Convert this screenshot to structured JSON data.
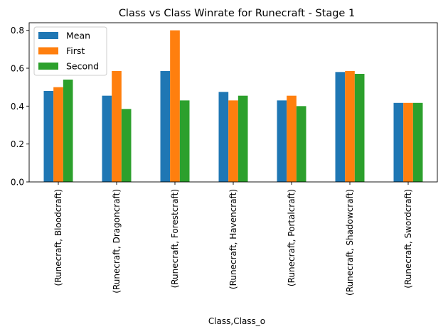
{
  "chart_data": {
    "type": "bar",
    "title": "Class vs Class Winrate for Runecraft - Stage 1",
    "xlabel": "Class,Class_o",
    "ylabel": "",
    "ylim": [
      0,
      0.84
    ],
    "yticks": [
      "0.0",
      "0.2",
      "0.4",
      "0.6",
      "0.8"
    ],
    "ytick_values": [
      0.0,
      0.2,
      0.4,
      0.6,
      0.8
    ],
    "grid": false,
    "legend_position": "top-left",
    "categories": [
      "(Runecraft, Bloodcraft)",
      "(Runecraft, Dragoncraft)",
      "(Runecraft, Forestcraft)",
      "(Runecraft, Havencraft)",
      "(Runecraft, Portalcraft)",
      "(Runecraft, Shadowcraft)",
      "(Runecraft, Swordcraft)"
    ],
    "series": [
      {
        "name": "Mean",
        "color": "#1f77b4",
        "values": [
          0.48,
          0.455,
          0.585,
          0.475,
          0.43,
          0.58,
          0.417
        ]
      },
      {
        "name": "First",
        "color": "#ff7f0e",
        "values": [
          0.5,
          0.585,
          0.8,
          0.43,
          0.455,
          0.585,
          0.417
        ]
      },
      {
        "name": "Second",
        "color": "#2ca02c",
        "values": [
          0.54,
          0.385,
          0.43,
          0.455,
          0.4,
          0.57,
          0.417
        ]
      }
    ]
  }
}
